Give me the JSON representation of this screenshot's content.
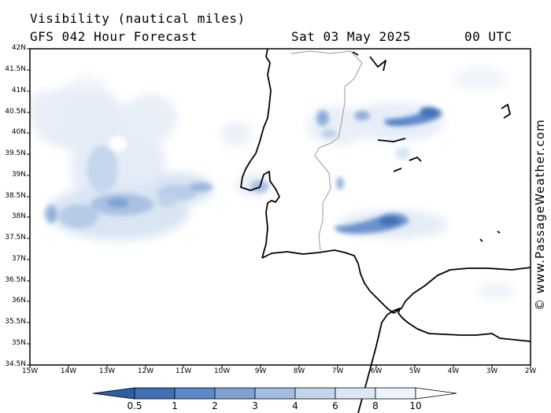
{
  "header": {
    "variable": "Visibility (nautical miles)",
    "model": "GFS 042 Hour Forecast",
    "date": "Sat 03 May 2025",
    "time": "00 UTC"
  },
  "map": {
    "lat_labels": [
      "42N",
      "41.5N",
      "41N",
      "40.5N",
      "40N",
      "39.5N",
      "39N",
      "38.5N",
      "38N",
      "37.5N",
      "37N",
      "36.5N",
      "36N",
      "35.5N",
      "35N",
      "34.5N"
    ],
    "lon_labels": [
      "15W",
      "14W",
      "13W",
      "12W",
      "11W",
      "10W",
      "9W",
      "8W",
      "7W",
      "6W",
      "5W",
      "4W",
      "3W",
      "2W"
    ]
  },
  "legend": {
    "labels": [
      "0.5",
      "1",
      "2",
      "3",
      "4",
      "6",
      "8",
      "10"
    ],
    "colors": [
      "#3f6fb5",
      "#5b88c6",
      "#7ea1d3",
      "#a3bde0",
      "#c3d5ec",
      "#dce7f5",
      "#edf3fa"
    ]
  },
  "watermark": "© www.PassageWeather.com"
}
